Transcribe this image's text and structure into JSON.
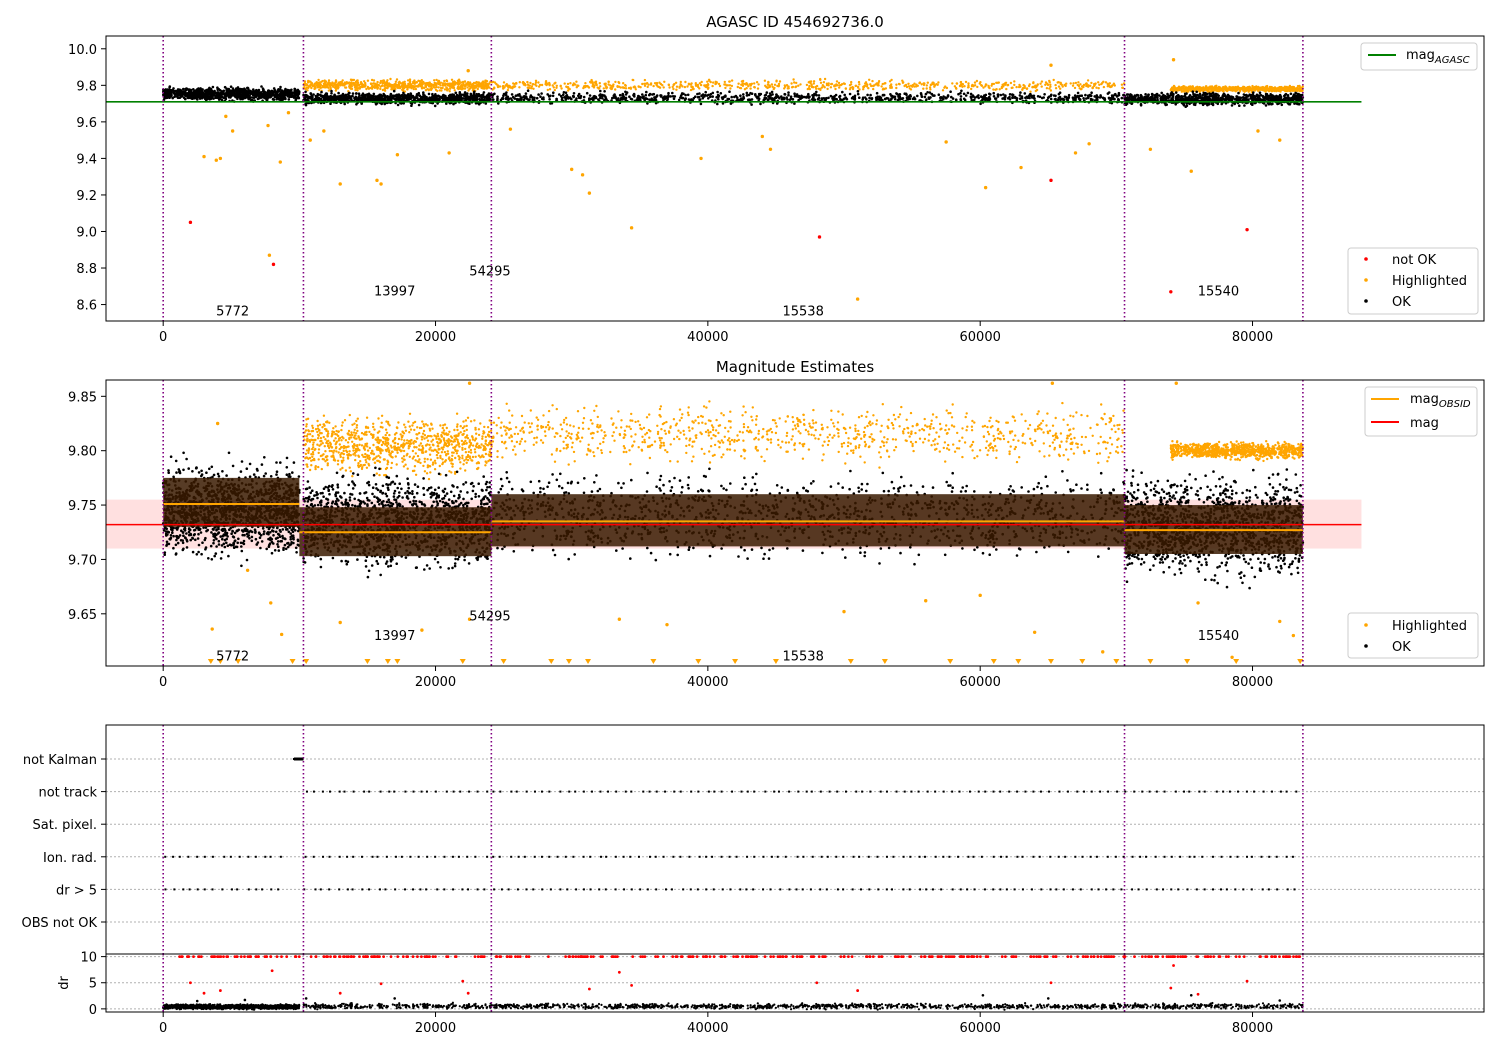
{
  "chart_data": [
    {
      "type": "scatter",
      "title": "AGASC ID 454692736.0",
      "xlabel": "",
      "ylabel": "",
      "xlim": [
        -4200,
        97000
      ],
      "ylim": [
        8.51,
        10.07
      ],
      "xticks": [
        0,
        20000,
        40000,
        60000,
        80000
      ],
      "xtick_labels": [
        "0",
        "20000",
        "40000",
        "60000",
        "80000"
      ],
      "yticks": [
        8.6,
        8.8,
        9.0,
        9.2,
        9.4,
        9.6,
        9.8,
        10.0
      ],
      "ytick_labels": [
        "8.6",
        "8.8",
        "9.0",
        "9.2",
        "9.4",
        "9.6",
        "9.8",
        "10.0"
      ],
      "grid": false,
      "obs_boundaries": [
        0,
        10300,
        24100,
        70600,
        83700
      ],
      "obs_labels": [
        {
          "x": 5100,
          "y": 8.54,
          "text": "5772"
        },
        {
          "x": 17000,
          "y": 8.65,
          "text": "13997"
        },
        {
          "x": 24000,
          "y": 8.76,
          "text": "54295"
        },
        {
          "x": 47000,
          "y": 8.54,
          "text": "15538"
        },
        {
          "x": 77500,
          "y": 8.65,
          "text": "15540"
        }
      ],
      "lines": [
        {
          "name": "mag_AGASC",
          "color": "#008000",
          "y": 9.71,
          "x": [
            -4200,
            88000
          ]
        }
      ],
      "ok_bands": [
        {
          "x": [
            0,
            10000
          ],
          "y": [
            9.705,
            9.8
          ]
        },
        {
          "x": [
            10300,
            24100
          ],
          "y": [
            9.685,
            9.77
          ]
        },
        {
          "x": [
            24100,
            70600
          ],
          "y": [
            9.69,
            9.775
          ]
        },
        {
          "x": [
            70600,
            83700
          ],
          "y": [
            9.68,
            9.77
          ]
        }
      ],
      "highlight_top": [
        {
          "x": [
            10300,
            24100
          ],
          "y": [
            9.76,
            9.84
          ]
        },
        {
          "x": [
            24100,
            70600
          ],
          "y": [
            9.76,
            9.84
          ]
        },
        {
          "x": [
            74000,
            83700
          ],
          "y": [
            9.76,
            9.8
          ]
        }
      ],
      "series": [
        {
          "name": "not OK",
          "color": "#ff0000",
          "points": [
            [
              2000,
              9.05
            ],
            [
              8100,
              8.82
            ],
            [
              48200,
              8.97
            ],
            [
              65200,
              9.28
            ],
            [
              74000,
              8.67
            ],
            [
              79600,
              9.01
            ]
          ]
        },
        {
          "name": "Highlighted",
          "color": "#ffa500",
          "points": [
            [
              3000,
              9.41
            ],
            [
              3900,
              9.39
            ],
            [
              4200,
              9.4
            ],
            [
              5100,
              9.55
            ],
            [
              4600,
              9.63
            ],
            [
              7800,
              8.87
            ],
            [
              7700,
              9.58
            ],
            [
              8600,
              9.38
            ],
            [
              9200,
              9.65
            ],
            [
              10800,
              9.5
            ],
            [
              11800,
              9.55
            ],
            [
              13000,
              9.26
            ],
            [
              15700,
              9.28
            ],
            [
              16000,
              9.26
            ],
            [
              17200,
              9.42
            ],
            [
              21000,
              9.43
            ],
            [
              22400,
              9.88
            ],
            [
              25500,
              9.56
            ],
            [
              30000,
              9.34
            ],
            [
              31300,
              9.21
            ],
            [
              30800,
              9.31
            ],
            [
              34400,
              9.02
            ],
            [
              39500,
              9.4
            ],
            [
              44000,
              9.52
            ],
            [
              44600,
              9.45
            ],
            [
              51000,
              8.63
            ],
            [
              57500,
              9.49
            ],
            [
              60400,
              9.24
            ],
            [
              63000,
              9.35
            ],
            [
              65200,
              9.91
            ],
            [
              67000,
              9.43
            ],
            [
              68000,
              9.48
            ],
            [
              72500,
              9.45
            ],
            [
              75500,
              9.33
            ],
            [
              74200,
              9.94
            ],
            [
              82000,
              9.5
            ],
            [
              80400,
              9.55
            ]
          ]
        },
        {
          "name": "OK",
          "color": "#000000",
          "points": []
        }
      ],
      "legend": [
        {
          "name": "mag_AGASC",
          "position": "top-right"
        },
        {
          "name": "not OK",
          "position": "bottom-right"
        },
        {
          "name": "Highlighted",
          "position": "bottom-right"
        },
        {
          "name": "OK",
          "position": "bottom-right"
        }
      ]
    },
    {
      "type": "scatter",
      "title": "Magnitude Estimates",
      "xlabel": "",
      "ylabel": "",
      "xlim": [
        -4200,
        97000
      ],
      "ylim": [
        9.602,
        9.865
      ],
      "xticks": [
        0,
        20000,
        40000,
        60000,
        80000
      ],
      "xtick_labels": [
        "0",
        "20000",
        "40000",
        "60000",
        "80000"
      ],
      "yticks": [
        9.65,
        9.7,
        9.75,
        9.8,
        9.85
      ],
      "ytick_labels": [
        "9.65",
        "9.70",
        "9.75",
        "9.80",
        "9.85"
      ],
      "grid": false,
      "obs_boundaries": [
        0,
        10300,
        24100,
        70600,
        83700
      ],
      "obs_labels": [
        {
          "x": 5100,
          "y": 9.607,
          "text": "5772"
        },
        {
          "x": 17000,
          "y": 9.626,
          "text": "13997"
        },
        {
          "x": 24000,
          "y": 9.644,
          "text": "54295"
        },
        {
          "x": 47000,
          "y": 9.607,
          "text": "15538"
        },
        {
          "x": 77500,
          "y": 9.626,
          "text": "15540"
        }
      ],
      "mag": {
        "name": "mag",
        "color": "#ff0000",
        "value": 9.732,
        "band": [
          9.71,
          9.755
        ],
        "x": [
          -4200,
          88000
        ]
      },
      "mag_obsid": [
        {
          "x": [
            0,
            10000
          ],
          "value": 9.751,
          "band": [
            9.73,
            9.775
          ]
        },
        {
          "x": [
            10000,
            24100
          ],
          "value": 9.725,
          "band": [
            9.703,
            9.748
          ]
        },
        {
          "x": [
            24100,
            70600
          ],
          "value": 9.735,
          "band": [
            9.712,
            9.76
          ]
        },
        {
          "x": [
            70600,
            83700
          ],
          "value": 9.727,
          "band": [
            9.705,
            9.75
          ]
        }
      ],
      "ok_bands": [
        {
          "x": [
            0,
            10000
          ],
          "y": [
            9.69,
            9.8
          ]
        },
        {
          "x": [
            10300,
            24100
          ],
          "y": [
            9.68,
            9.79
          ]
        },
        {
          "x": [
            24100,
            70600
          ],
          "y": [
            9.69,
            9.79
          ]
        },
        {
          "x": [
            70600,
            83700
          ],
          "y": [
            9.67,
            9.79
          ]
        }
      ],
      "highlight_top": [
        {
          "x": [
            10300,
            24100
          ],
          "y": [
            9.77,
            9.84
          ]
        },
        {
          "x": [
            24100,
            70600
          ],
          "y": [
            9.78,
            9.85
          ]
        },
        {
          "x": [
            74000,
            83700
          ],
          "y": [
            9.79,
            9.81
          ]
        }
      ],
      "series": [
        {
          "name": "Highlighted",
          "color": "#ffa500",
          "points": [
            [
              3600,
              9.636
            ],
            [
              8700,
              9.631
            ],
            [
              6200,
              9.69
            ],
            [
              4000,
              9.825
            ],
            [
              22500,
              9.862
            ],
            [
              65300,
              9.862
            ],
            [
              74400,
              9.862
            ],
            [
              7900,
              9.66
            ],
            [
              13000,
              9.642
            ],
            [
              19000,
              9.635
            ],
            [
              22500,
              9.645
            ],
            [
              33500,
              9.645
            ],
            [
              37000,
              9.64
            ],
            [
              50000,
              9.652
            ],
            [
              56000,
              9.662
            ],
            [
              60000,
              9.667
            ],
            [
              64000,
              9.633
            ],
            [
              69000,
              9.615
            ],
            [
              76000,
              9.66
            ],
            [
              78500,
              9.61
            ],
            [
              82000,
              9.643
            ],
            [
              83000,
              9.63
            ]
          ]
        },
        {
          "name": "OK",
          "color": "#000000",
          "points": []
        }
      ],
      "legend": [
        {
          "name": "mag_OBSID",
          "position": "top-right"
        },
        {
          "name": "mag",
          "position": "top-right"
        },
        {
          "name": "Highlighted",
          "position": "bottom-right"
        },
        {
          "name": "OK",
          "position": "bottom-right"
        }
      ]
    },
    {
      "type": "scatter",
      "title": "",
      "xlabel": "",
      "ylabel": "",
      "xlim": [
        -4200,
        97000
      ],
      "categories": [
        "not Kalman",
        "not track",
        "Sat. pixel.",
        "Ion. rad.",
        "dr > 5",
        "OBS not OK"
      ],
      "grid": true,
      "obs_boundaries": [
        0,
        10300,
        24100,
        70600,
        83700
      ],
      "flag_segments": {
        "not Kalman": [
          [
            9600,
            10300
          ]
        ],
        "not track": [
          [
            10300,
            83700
          ]
        ],
        "Sat. pixel.": [],
        "Ion. rad.": [
          [
            0,
            9000
          ],
          [
            10300,
            83500
          ]
        ],
        "dr > 5": [
          [
            0,
            9000
          ],
          [
            10300,
            83500
          ]
        ],
        "OBS not OK": []
      }
    },
    {
      "type": "scatter",
      "title": "",
      "xlabel": "",
      "ylabel": "dr",
      "xlim": [
        -4200,
        97000
      ],
      "ylim": [
        -0.6,
        10.5
      ],
      "yticks": [
        0,
        5,
        10
      ],
      "ytick_labels": [
        "0",
        "5",
        "10"
      ],
      "xticks": [
        0,
        20000,
        40000,
        60000,
        80000
      ],
      "xtick_labels": [
        "0",
        "20000",
        "40000",
        "60000",
        "80000"
      ],
      "grid": true,
      "obs_boundaries": [
        0,
        10300,
        24100,
        70600,
        83700
      ],
      "dr_capped": 10,
      "series": [
        {
          "name": "dr_red",
          "color": "#ff0000",
          "points": [
            [
              2000,
              5.0
            ],
            [
              3000,
              3.0
            ],
            [
              4200,
              3.5
            ],
            [
              8000,
              7.3
            ],
            [
              13000,
              3.0
            ],
            [
              16000,
              4.8
            ],
            [
              22000,
              5.3
            ],
            [
              22400,
              3.0
            ],
            [
              31300,
              3.8
            ],
            [
              33500,
              7.0
            ],
            [
              34400,
              4.5
            ],
            [
              48000,
              5.0
            ],
            [
              51000,
              3.5
            ],
            [
              65200,
              5.0
            ],
            [
              74000,
              4.0
            ],
            [
              74200,
              8.3
            ],
            [
              76000,
              2.8
            ],
            [
              79600,
              5.3
            ]
          ]
        },
        {
          "name": "dr_black",
          "color": "#000000",
          "points": []
        }
      ]
    }
  ]
}
